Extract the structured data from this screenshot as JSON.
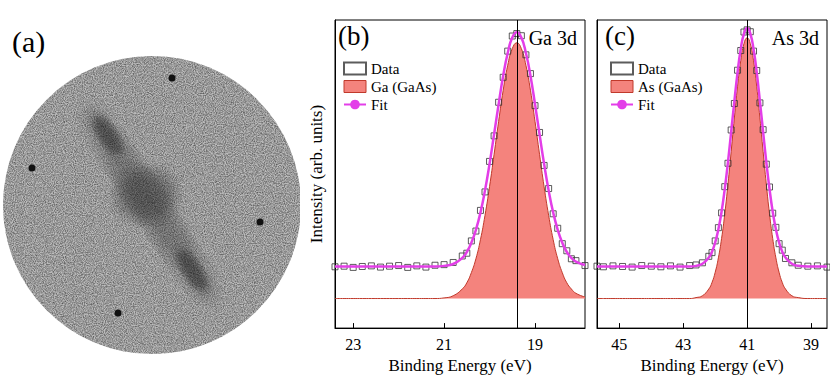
{
  "image_panel": {
    "label": "(a)"
  },
  "chart_data": [
    {
      "type": "line",
      "panel_label": "(b)",
      "title": "Ga 3d",
      "x_label": "Binding Energy (eV)",
      "y_label": "Intensity (arb. units)",
      "xlim": [
        23.4,
        17.9
      ],
      "xticks": [
        23,
        21,
        19
      ],
      "ylim": [
        0,
        100
      ],
      "tick_labels": "x",
      "legend": "upper left",
      "vline": 19.4,
      "x": [
        17.9,
        18.1,
        18.2,
        18.3,
        18.4,
        18.5,
        18.6,
        18.7,
        18.8,
        18.9,
        19.0,
        19.1,
        19.2,
        19.3,
        19.4,
        19.5,
        19.6,
        19.7,
        19.8,
        19.9,
        20.0,
        20.1,
        20.2,
        20.3,
        20.4,
        20.5,
        20.6,
        20.8,
        21.0,
        21.2,
        21.4,
        21.6,
        21.8,
        22.0,
        22.2,
        22.4,
        22.6,
        22.8,
        23.0,
        23.2,
        23.4
      ],
      "series": [
        {
          "name": "Data",
          "type": "scatter",
          "marker": "square",
          "color": "#333333",
          "values": [
            20.3,
            21.9,
            22.5,
            25.1,
            27.4,
            32.4,
            37.1,
            45.3,
            52.8,
            63.5,
            72.2,
            82.6,
            88.7,
            94.9,
            95.6,
            94.8,
            89.9,
            81.4,
            73.3,
            62.4,
            54.1,
            44.2,
            38.2,
            31.5,
            28.3,
            24.3,
            23.4,
            21.3,
            20.6,
            20.4,
            19.8,
            20.2,
            19.7,
            20.3,
            20.1,
            19.8,
            20.2,
            20.0,
            19.7,
            20.1,
            19.9
          ]
        },
        {
          "name": "Ga (GaAs)",
          "type": "area",
          "color": "#f4837d",
          "baseline": 9.6,
          "values": [
            10.1,
            11.3,
            12.7,
            14.7,
            18.0,
            22.5,
            28.7,
            36.6,
            45.9,
            56.4,
            67.1,
            77.2,
            85.3,
            90.7,
            92.6,
            90.7,
            85.3,
            77.2,
            67.1,
            56.4,
            45.9,
            36.6,
            28.7,
            22.5,
            18.0,
            14.7,
            12.7,
            10.5,
            9.8,
            9.6,
            9.6,
            9.6,
            9.6,
            9.6,
            9.6,
            9.6,
            9.6,
            9.6,
            9.6,
            9.6,
            9.6
          ]
        },
        {
          "name": "Fit",
          "type": "line",
          "line_style": "solid",
          "color": "#e33ee8",
          "values": [
            20.5,
            21.6,
            22.8,
            24.7,
            27.7,
            31.9,
            37.5,
            44.7,
            53.3,
            62.9,
            72.7,
            81.9,
            89.3,
            94.3,
            96.0,
            94.3,
            89.3,
            81.9,
            72.7,
            62.9,
            53.3,
            44.7,
            37.5,
            31.9,
            27.7,
            24.7,
            22.8,
            20.8,
            20.2,
            20.0,
            20.0,
            20.0,
            20.0,
            20.0,
            20.0,
            20.0,
            20.0,
            20.0,
            20.0,
            20.0,
            20.0
          ]
        }
      ]
    },
    {
      "type": "line",
      "panel_label": "(c)",
      "title": "As 3d",
      "x_label": "Binding Energy (eV)",
      "xlim": [
        45.7,
        38.5
      ],
      "xticks": [
        45,
        43,
        41,
        39
      ],
      "ylim": [
        0,
        100
      ],
      "tick_labels": "x",
      "legend": "upper left",
      "vline": 41.0,
      "x": [
        38.5,
        38.8,
        39.1,
        39.4,
        39.6,
        39.8,
        39.9,
        40.0,
        40.1,
        40.2,
        40.3,
        40.4,
        40.5,
        40.6,
        40.7,
        40.8,
        40.9,
        41.0,
        41.1,
        41.2,
        41.3,
        41.4,
        41.5,
        41.6,
        41.7,
        41.8,
        41.9,
        42.0,
        42.1,
        42.2,
        42.4,
        42.6,
        42.8,
        43.1,
        43.4,
        43.7,
        44.0,
        44.3,
        44.6,
        44.9,
        45.2,
        45.5,
        45.7
      ],
      "series": [
        {
          "name": "Data",
          "type": "scatter",
          "marker": "square",
          "color": "#333333",
          "values": [
            19.8,
            20.2,
            20.1,
            20.4,
            21.2,
            22.6,
            25.3,
            27.4,
            32.7,
            37.3,
            45.8,
            53.2,
            64.4,
            73.1,
            83.6,
            89.9,
            96.2,
            96.8,
            96.1,
            90.1,
            83.7,
            72.9,
            64.3,
            53.5,
            45.9,
            37.4,
            32.6,
            28.3,
            24.5,
            23.3,
            21.2,
            20.5,
            20.3,
            19.8,
            20.2,
            19.9,
            20.1,
            20.3,
            19.8,
            20.0,
            20.2,
            19.9,
            20.1
          ]
        },
        {
          "name": "As (GaAs)",
          "type": "area",
          "color": "#f4837d",
          "baseline": 9.6,
          "values": [
            9.6,
            9.6,
            9.6,
            9.9,
            10.5,
            12.7,
            14.8,
            18.1,
            22.8,
            29.1,
            37.1,
            46.7,
            57.3,
            68.2,
            78.5,
            86.8,
            92.3,
            94.2,
            92.3,
            86.8,
            78.5,
            68.2,
            57.3,
            46.7,
            37.1,
            29.1,
            22.8,
            18.1,
            14.8,
            12.7,
            10.5,
            9.9,
            9.6,
            9.6,
            9.6,
            9.6,
            9.6,
            9.6,
            9.6,
            9.6,
            9.6,
            9.6,
            9.6
          ]
        },
        {
          "name": "Fit",
          "type": "line",
          "line_style": "solid",
          "color": "#e33ee8",
          "values": [
            20.0,
            20.0,
            20.0,
            20.2,
            20.9,
            22.9,
            24.8,
            27.8,
            32.1,
            37.8,
            45.2,
            53.9,
            63.7,
            73.6,
            83.0,
            90.6,
            95.6,
            97.4,
            95.6,
            90.6,
            83.0,
            73.6,
            63.7,
            53.9,
            45.2,
            37.8,
            32.1,
            27.8,
            24.8,
            22.9,
            20.9,
            20.2,
            20.0,
            20.0,
            20.0,
            20.0,
            20.0,
            20.0,
            20.0,
            20.0,
            20.0,
            20.0,
            20.0
          ]
        }
      ]
    }
  ]
}
